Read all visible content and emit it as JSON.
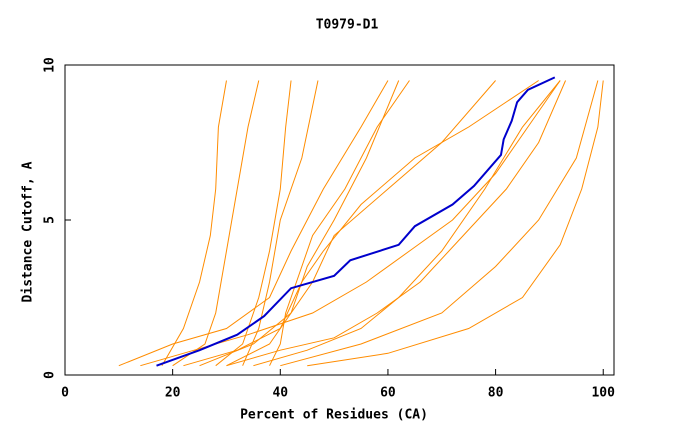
{
  "chart_data": {
    "type": "line",
    "title": "T0979-D1",
    "x_label": "Percent of Residues (CA)",
    "y_label": "Distance Cutoff, A",
    "xlim": [
      0,
      102
    ],
    "ylim": [
      0,
      10
    ],
    "xticks": [
      0,
      20,
      40,
      60,
      80,
      100
    ],
    "yticks": [
      0,
      5,
      10
    ],
    "series": [
      {
        "color": "#ff8c00",
        "x": [
          18,
          22,
          25,
          27,
          28,
          28.5,
          30
        ],
        "values": [
          0.3,
          1.5,
          3,
          4.5,
          6,
          8,
          9.5
        ]
      },
      {
        "color": "#ff8c00",
        "x": [
          20,
          26,
          28,
          30,
          32,
          34,
          36
        ],
        "values": [
          0.3,
          1,
          2,
          4,
          6,
          8,
          9.5
        ]
      },
      {
        "color": "#ff8c00",
        "x": [
          10,
          20,
          30,
          38,
          42,
          48,
          55,
          60
        ],
        "values": [
          0.3,
          1,
          1.5,
          2.5,
          4,
          6,
          8,
          9.5
        ]
      },
      {
        "color": "#ff8c00",
        "x": [
          30,
          38,
          42,
          45,
          50,
          56,
          62
        ],
        "values": [
          0.3,
          1,
          2,
          3.5,
          5,
          7,
          9.5
        ]
      },
      {
        "color": "#ff8c00",
        "x": [
          35,
          45,
          55,
          62,
          70,
          78,
          85,
          92
        ],
        "values": [
          0.3,
          0.8,
          1.5,
          2.5,
          4,
          6,
          8,
          9.5
        ]
      },
      {
        "color": "#ff8c00",
        "x": [
          40,
          55,
          70,
          80,
          88,
          95,
          99
        ],
        "values": [
          0.3,
          1,
          2,
          3.5,
          5,
          7,
          9.5
        ]
      },
      {
        "color": "#ff8c00",
        "x": [
          45,
          60,
          75,
          85,
          92,
          96,
          99,
          100
        ],
        "values": [
          0.3,
          0.7,
          1.5,
          2.5,
          4.2,
          6,
          8,
          9.5
        ]
      },
      {
        "color": "#ff8c00",
        "x": [
          25,
          35,
          42,
          46,
          50,
          60,
          70,
          80
        ],
        "values": [
          0.3,
          1,
          2,
          3,
          4.5,
          6,
          7.5,
          9.5
        ]
      },
      {
        "color": "#ff8c00",
        "x": [
          28,
          33,
          36,
          38,
          40,
          41,
          42
        ],
        "values": [
          0.3,
          1,
          2.5,
          4,
          6,
          8,
          9.5
        ]
      },
      {
        "color": "#ff8c00",
        "x": [
          22,
          32,
          40,
          44,
          48,
          55,
          65,
          75,
          88
        ],
        "values": [
          0.3,
          0.8,
          1.5,
          3,
          4,
          5.5,
          7,
          8,
          9.5
        ]
      },
      {
        "color": "#ff8c00",
        "x": [
          30,
          40,
          50,
          58,
          66,
          74,
          82,
          88,
          93
        ],
        "values": [
          0.3,
          0.8,
          1.2,
          2,
          3,
          4.5,
          6,
          7.5,
          9.5
        ]
      },
      {
        "color": "#ff8c00",
        "x": [
          38,
          40,
          41,
          43,
          46,
          52,
          58,
          64
        ],
        "values": [
          0.3,
          1,
          2,
          3,
          4.5,
          6,
          8,
          9.5
        ]
      },
      {
        "color": "#ff8c00",
        "x": [
          14,
          24,
          34,
          46,
          56,
          64,
          72,
          80,
          86,
          92
        ],
        "values": [
          0.3,
          0.8,
          1.3,
          2,
          3,
          4,
          5,
          6.5,
          8,
          9.5
        ]
      },
      {
        "color": "#ff8c00",
        "x": [
          33,
          36,
          38,
          40,
          44,
          47
        ],
        "values": [
          0.3,
          1.5,
          3,
          5,
          7,
          9.5
        ]
      },
      {
        "color": "#0000cc",
        "x": [
          17,
          25,
          32,
          37,
          42,
          50,
          53,
          62,
          65,
          72,
          76,
          81,
          81.5,
          83,
          84,
          86,
          91
        ],
        "values": [
          0.3,
          0.8,
          1.3,
          1.9,
          2.8,
          3.2,
          3.7,
          4.2,
          4.8,
          5.5,
          6.1,
          7.1,
          7.6,
          8.2,
          8.8,
          9.2,
          9.6
        ]
      }
    ]
  }
}
